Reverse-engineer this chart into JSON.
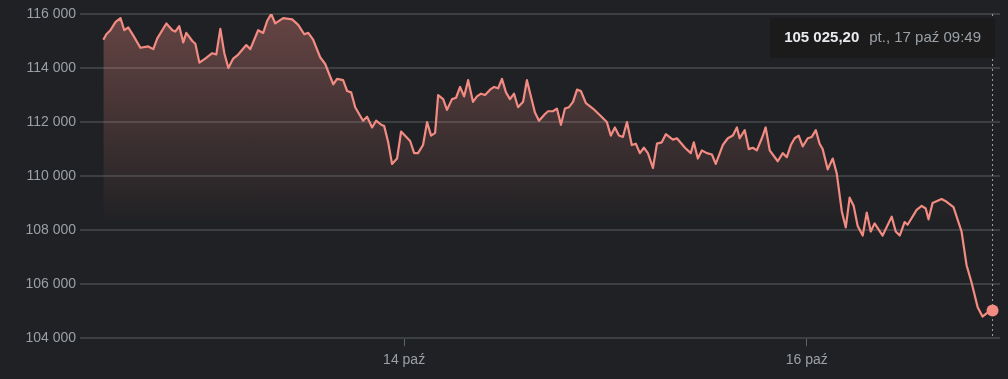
{
  "chart_data": {
    "type": "area",
    "marker": "none",
    "grid": "y",
    "xlim": [
      12.39,
      16.96
    ],
    "ylim": [
      104000,
      116000
    ],
    "xticks": [
      {
        "value": 14,
        "label": "14 paź"
      },
      {
        "value": 16,
        "label": "16 paź"
      }
    ],
    "yticks": [
      {
        "value": 104000,
        "label": "104 000"
      },
      {
        "value": 106000,
        "label": "106 000"
      },
      {
        "value": 108000,
        "label": "108 000"
      },
      {
        "value": 110000,
        "label": "110 000"
      },
      {
        "value": 112000,
        "label": "112 000"
      },
      {
        "value": 114000,
        "label": "114 000"
      },
      {
        "value": 116000,
        "label": "116 000"
      }
    ],
    "ref_lines": [
      {
        "axis": "x",
        "value": 16.923,
        "color": "#9aa0a6",
        "line_style": "dotted"
      }
    ],
    "annotations": [
      "105 025,20",
      "pt., 17 paź 09:49"
    ],
    "series": [
      {
        "color": "#f28b82",
        "x": [
          12.506,
          12.521,
          12.541,
          12.566,
          12.591,
          12.61,
          12.63,
          12.655,
          12.69,
          12.729,
          12.754,
          12.774,
          12.819,
          12.849,
          12.863,
          12.883,
          12.903,
          12.918,
          12.948,
          12.963,
          12.983,
          13.012,
          13.047,
          13.067,
          13.087,
          13.107,
          13.127,
          13.151,
          13.176,
          13.216,
          13.236,
          13.275,
          13.3,
          13.32,
          13.34,
          13.36,
          13.399,
          13.444,
          13.474,
          13.504,
          13.524,
          13.548,
          13.583,
          13.608,
          13.648,
          13.667,
          13.697,
          13.717,
          13.737,
          13.757,
          13.796,
          13.816,
          13.841,
          13.861,
          13.886,
          13.901,
          13.921,
          13.94,
          13.965,
          13.985,
          14.03,
          14.05,
          14.069,
          14.094,
          14.114,
          14.134,
          14.154,
          14.169,
          14.194,
          14.213,
          14.238,
          14.258,
          14.278,
          14.298,
          14.318,
          14.342,
          14.362,
          14.382,
          14.402,
          14.427,
          14.447,
          14.467,
          14.486,
          14.506,
          14.526,
          14.546,
          14.566,
          14.591,
          14.61,
          14.63,
          14.65,
          14.67,
          14.7,
          14.715,
          14.739,
          14.759,
          14.779,
          14.799,
          14.819,
          14.839,
          14.859,
          14.878,
          14.903,
          14.938,
          14.973,
          15.007,
          15.027,
          15.047,
          15.067,
          15.087,
          15.107,
          15.131,
          15.151,
          15.171,
          15.191,
          15.211,
          15.236,
          15.256,
          15.28,
          15.3,
          15.335,
          15.355,
          15.395,
          15.424,
          15.439,
          15.459,
          15.479,
          15.504,
          15.529,
          15.548,
          15.583,
          15.608,
          15.633,
          15.653,
          15.667,
          15.692,
          15.712,
          15.732,
          15.752,
          15.777,
          15.796,
          15.816,
          15.856,
          15.881,
          15.901,
          15.921,
          15.94,
          15.96,
          15.98,
          16.005,
          16.025,
          16.045,
          16.064,
          16.079,
          16.104,
          16.129,
          16.149,
          16.174,
          16.194,
          16.213,
          16.233,
          16.253,
          16.278,
          16.298,
          16.318,
          16.337,
          16.377,
          16.422,
          16.442,
          16.462,
          16.486,
          16.501,
          16.546,
          16.571,
          16.591,
          16.605,
          16.625,
          16.67,
          16.695,
          16.729,
          16.769,
          16.794,
          16.819,
          16.849,
          16.873,
          16.898,
          16.923
        ],
        "values": [
          115050,
          115250,
          115400,
          115700,
          115850,
          115400,
          115500,
          115200,
          114750,
          114800,
          114700,
          115100,
          115650,
          115400,
          115350,
          115550,
          114950,
          115300,
          115000,
          114900,
          114200,
          114350,
          114550,
          114500,
          115450,
          114550,
          114000,
          114350,
          114500,
          114850,
          114700,
          115400,
          115300,
          115750,
          116000,
          115650,
          115850,
          115800,
          115600,
          115250,
          115300,
          115050,
          114400,
          114150,
          113400,
          113600,
          113550,
          113150,
          113100,
          112550,
          112050,
          112200,
          111800,
          112050,
          111900,
          111850,
          111250,
          110450,
          110650,
          111650,
          111300,
          110850,
          110850,
          111150,
          112000,
          111500,
          111600,
          113000,
          112850,
          112450,
          112850,
          112900,
          113300,
          112950,
          113550,
          112750,
          112950,
          113050,
          113000,
          113200,
          113300,
          113250,
          113600,
          113100,
          112850,
          113050,
          112550,
          112750,
          113550,
          112950,
          112350,
          112050,
          112300,
          112400,
          112400,
          112500,
          111900,
          112500,
          112550,
          112750,
          113200,
          113150,
          112700,
          112500,
          112250,
          112000,
          111500,
          111800,
          111500,
          111450,
          112000,
          111150,
          111200,
          110850,
          111050,
          110850,
          110300,
          111200,
          111250,
          111550,
          111350,
          111400,
          111050,
          110850,
          111250,
          110650,
          110950,
          110850,
          110800,
          110450,
          111150,
          111400,
          111500,
          111800,
          111400,
          111700,
          111000,
          111050,
          110950,
          111400,
          111800,
          110950,
          110550,
          110850,
          110700,
          111150,
          111400,
          111500,
          111100,
          111400,
          111450,
          111700,
          111200,
          111000,
          110250,
          110650,
          110100,
          108700,
          108100,
          109200,
          108900,
          108150,
          107800,
          108650,
          107950,
          108250,
          107800,
          108500,
          107950,
          107800,
          108300,
          108200,
          108750,
          108900,
          108800,
          108400,
          109000,
          109150,
          109050,
          108850,
          107950,
          106700,
          106050,
          105150,
          104800,
          104950,
          105025.2
        ]
      }
    ]
  }
}
